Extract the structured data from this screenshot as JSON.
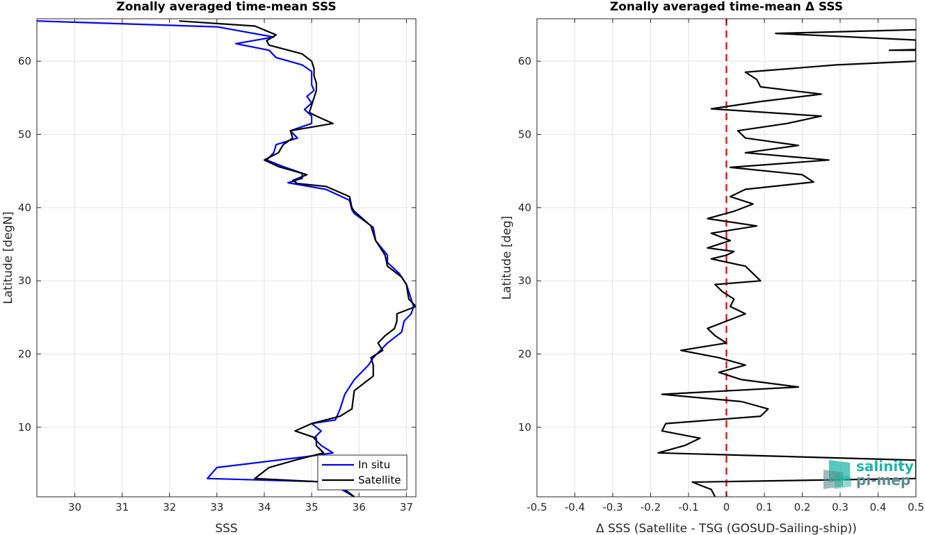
{
  "colors": {
    "in_situ": "#0000ff",
    "satellite": "#000000",
    "zero_line": "#e31a1c",
    "grid": "#e2e2e2",
    "logo_primary": "#1fb5a5",
    "logo_secondary": "#5c8a8a"
  },
  "logo": {
    "line1": "salinity",
    "line2": "pi-mep"
  },
  "chart_data": [
    {
      "type": "line",
      "title": "Zonally averaged time-mean SSS",
      "xlabel": "SSS",
      "ylabel": "Latitude [degN]",
      "xlim": [
        29.2,
        37.2
      ],
      "ylim": [
        0.5,
        65.8
      ],
      "xticks": [
        30,
        31,
        32,
        33,
        34,
        35,
        36,
        37
      ],
      "yticks": [
        10,
        20,
        30,
        40,
        50,
        60
      ],
      "grid": true,
      "legend": "bottom-right",
      "legend_labels": [
        "In situ",
        "Satellite"
      ],
      "series": [
        {
          "name": "In situ",
          "color": "#0000ff",
          "points": [
            [
              29.2,
              65.5
            ],
            [
              33.0,
              64.7
            ],
            [
              34.2,
              63.3
            ],
            [
              33.4,
              62.4
            ],
            [
              34.1,
              61.5
            ],
            [
              34.25,
              60.5
            ],
            [
              34.8,
              59.5
            ],
            [
              35.0,
              58.6
            ],
            [
              35.0,
              57.7
            ],
            [
              35.0,
              56.8
            ],
            [
              35.05,
              56.0
            ],
            [
              34.9,
              55.2
            ],
            [
              35.0,
              54.3
            ],
            [
              34.85,
              53.4
            ],
            [
              35.0,
              52.5
            ],
            [
              35.0,
              51.5
            ],
            [
              34.55,
              50.5
            ],
            [
              34.7,
              49.5
            ],
            [
              34.25,
              48.6
            ],
            [
              34.2,
              47.5
            ],
            [
              34.05,
              46.5
            ],
            [
              34.4,
              45.6
            ],
            [
              34.8,
              44.7
            ],
            [
              34.8,
              44.0
            ],
            [
              34.5,
              43.4
            ],
            [
              35.3,
              42.5
            ],
            [
              35.8,
              41.0
            ],
            [
              35.85,
              39.7
            ],
            [
              35.9,
              39.2
            ],
            [
              36.3,
              37.3
            ],
            [
              36.35,
              35.5
            ],
            [
              36.6,
              33.5
            ],
            [
              36.6,
              32.5
            ],
            [
              36.85,
              31.0
            ],
            [
              37.0,
              29.5
            ],
            [
              37.1,
              27.5
            ],
            [
              37.15,
              26.5
            ],
            [
              37.1,
              25.5
            ],
            [
              36.95,
              24.5
            ],
            [
              36.9,
              23.0
            ],
            [
              36.6,
              21.5
            ],
            [
              36.3,
              19.5
            ],
            [
              36.2,
              18.5
            ],
            [
              35.9,
              16.5
            ],
            [
              35.7,
              14.5
            ],
            [
              35.6,
              12.5
            ],
            [
              35.5,
              11.0
            ],
            [
              35.0,
              10.5
            ],
            [
              35.2,
              9.5
            ],
            [
              35.05,
              8.5
            ],
            [
              35.2,
              7.5
            ],
            [
              35.45,
              6.5
            ],
            [
              34.9,
              6.0
            ],
            [
              33.0,
              4.5
            ],
            [
              32.8,
              3.0
            ],
            [
              35.5,
              2.5
            ],
            [
              35.5,
              2.0
            ],
            [
              35.9,
              0.5
            ]
          ]
        },
        {
          "name": "Satellite",
          "color": "#000000",
          "points": [
            [
              32.2,
              65.5
            ],
            [
              33.8,
              64.8
            ],
            [
              34.25,
              63.6
            ],
            [
              34.05,
              62.8
            ],
            [
              34.1,
              62.2
            ],
            [
              34.8,
              61.0
            ],
            [
              35.0,
              60.0
            ],
            [
              35.05,
              59.0
            ],
            [
              35.05,
              58.0
            ],
            [
              35.1,
              57.0
            ],
            [
              35.1,
              56.0
            ],
            [
              35.05,
              55.0
            ],
            [
              35.0,
              54.0
            ],
            [
              34.95,
              53.0
            ],
            [
              35.1,
              52.5
            ],
            [
              35.45,
              51.5
            ],
            [
              34.55,
              50.5
            ],
            [
              34.6,
              49.5
            ],
            [
              34.4,
              48.6
            ],
            [
              34.3,
              47.5
            ],
            [
              34.0,
              46.5
            ],
            [
              34.3,
              45.6
            ],
            [
              34.9,
              44.5
            ],
            [
              34.6,
              43.7
            ],
            [
              34.7,
              43.3
            ],
            [
              35.3,
              42.9
            ],
            [
              35.8,
              41.5
            ],
            [
              35.85,
              40.0
            ],
            [
              35.9,
              39.5
            ],
            [
              36.25,
              37.5
            ],
            [
              36.35,
              35.5
            ],
            [
              36.55,
              33.5
            ],
            [
              36.6,
              32.0
            ],
            [
              36.9,
              30.5
            ],
            [
              37.0,
              29.5
            ],
            [
              37.05,
              27.5
            ],
            [
              37.2,
              26.5
            ],
            [
              36.8,
              25.5
            ],
            [
              36.8,
              24.5
            ],
            [
              36.75,
              23.5
            ],
            [
              36.55,
              22.5
            ],
            [
              36.4,
              21.5
            ],
            [
              36.5,
              20.5
            ],
            [
              36.25,
              19.5
            ],
            [
              36.3,
              18.5
            ],
            [
              36.3,
              17.0
            ],
            [
              35.9,
              15.0
            ],
            [
              35.85,
              12.5
            ],
            [
              35.6,
              11.5
            ],
            [
              35.0,
              10.5
            ],
            [
              34.65,
              9.5
            ],
            [
              35.1,
              8.5
            ],
            [
              35.1,
              7.5
            ],
            [
              35.25,
              6.5
            ],
            [
              34.65,
              5.5
            ],
            [
              34.1,
              4.5
            ],
            [
              33.8,
              3.0
            ],
            [
              35.3,
              2.5
            ],
            [
              35.6,
              2.0
            ],
            [
              35.9,
              0.5
            ]
          ]
        }
      ]
    },
    {
      "type": "line",
      "title": "Zonally averaged time-mean Δ SSS",
      "xlabel": "Δ SSS (Satellite - TSG (GOSUD-Sailing-ship))",
      "ylabel": "Latitude [deg]",
      "xlim": [
        -0.5,
        0.5
      ],
      "ylim": [
        0.5,
        65.8
      ],
      "xticks": [
        -0.5,
        -0.4,
        -0.3,
        -0.2,
        -0.1,
        0,
        0.1,
        0.2,
        0.3,
        0.4,
        0.5
      ],
      "yticks": [
        10,
        20,
        30,
        40,
        50,
        60
      ],
      "grid": true,
      "reference_line": 0,
      "series": [
        {
          "name": "",
          "color": "#000000",
          "points": [
            [
              0.5,
              64.3
            ],
            [
              0.13,
              63.8
            ],
            [
              0.5,
              62.9
            ],
            [
              0.5,
              61.6
            ],
            [
              0.43,
              61.5
            ],
            [
              0.5,
              61.5
            ],
            [
              0.5,
              60.0
            ],
            [
              0.29,
              59.5
            ],
            [
              0.05,
              58.5
            ],
            [
              0.08,
              57.5
            ],
            [
              0.09,
              56.5
            ],
            [
              0.25,
              55.5
            ],
            [
              0.09,
              54.5
            ],
            [
              -0.04,
              53.5
            ],
            [
              0.25,
              52.5
            ],
            [
              0.16,
              51.5
            ],
            [
              0.03,
              50.5
            ],
            [
              0.05,
              49.5
            ],
            [
              0.19,
              48.5
            ],
            [
              0.05,
              47.5
            ],
            [
              0.27,
              46.5
            ],
            [
              0.01,
              45.5
            ],
            [
              0.2,
              44.5
            ],
            [
              0.23,
              43.5
            ],
            [
              0.05,
              42.5
            ],
            [
              0.01,
              41.5
            ],
            [
              0.07,
              40.5
            ],
            [
              0.02,
              39.5
            ],
            [
              -0.05,
              38.5
            ],
            [
              0.08,
              37.5
            ],
            [
              -0.04,
              36.5
            ],
            [
              0.01,
              35.5
            ],
            [
              -0.05,
              34.5
            ],
            [
              0.02,
              34.0
            ],
            [
              0.0,
              33.5
            ],
            [
              -0.04,
              33.0
            ],
            [
              0.05,
              32.0
            ],
            [
              0.07,
              31.0
            ],
            [
              0.09,
              30.0
            ],
            [
              -0.03,
              29.5
            ],
            [
              -0.01,
              28.5
            ],
            [
              0.02,
              27.5
            ],
            [
              0.01,
              26.5
            ],
            [
              0.05,
              25.5
            ],
            [
              0.0,
              24.5
            ],
            [
              -0.05,
              23.5
            ],
            [
              -0.03,
              22.5
            ],
            [
              0.0,
              21.5
            ],
            [
              -0.12,
              20.5
            ],
            [
              -0.02,
              19.5
            ],
            [
              0.05,
              18.5
            ],
            [
              -0.02,
              17.5
            ],
            [
              0.04,
              16.5
            ],
            [
              0.19,
              15.5
            ],
            [
              -0.17,
              14.5
            ],
            [
              0.04,
              13.5
            ],
            [
              0.11,
              12.5
            ],
            [
              0.09,
              11.5
            ],
            [
              -0.16,
              10.5
            ],
            [
              -0.17,
              9.5
            ],
            [
              -0.07,
              8.5
            ],
            [
              -0.11,
              7.5
            ],
            [
              -0.18,
              6.5
            ],
            [
              0.5,
              5.5
            ],
            [
              0.5,
              4.0
            ],
            [
              0.5,
              3.0
            ],
            [
              -0.09,
              2.5
            ],
            [
              -0.04,
              1.5
            ],
            [
              -0.03,
              0.5
            ]
          ]
        }
      ]
    }
  ]
}
